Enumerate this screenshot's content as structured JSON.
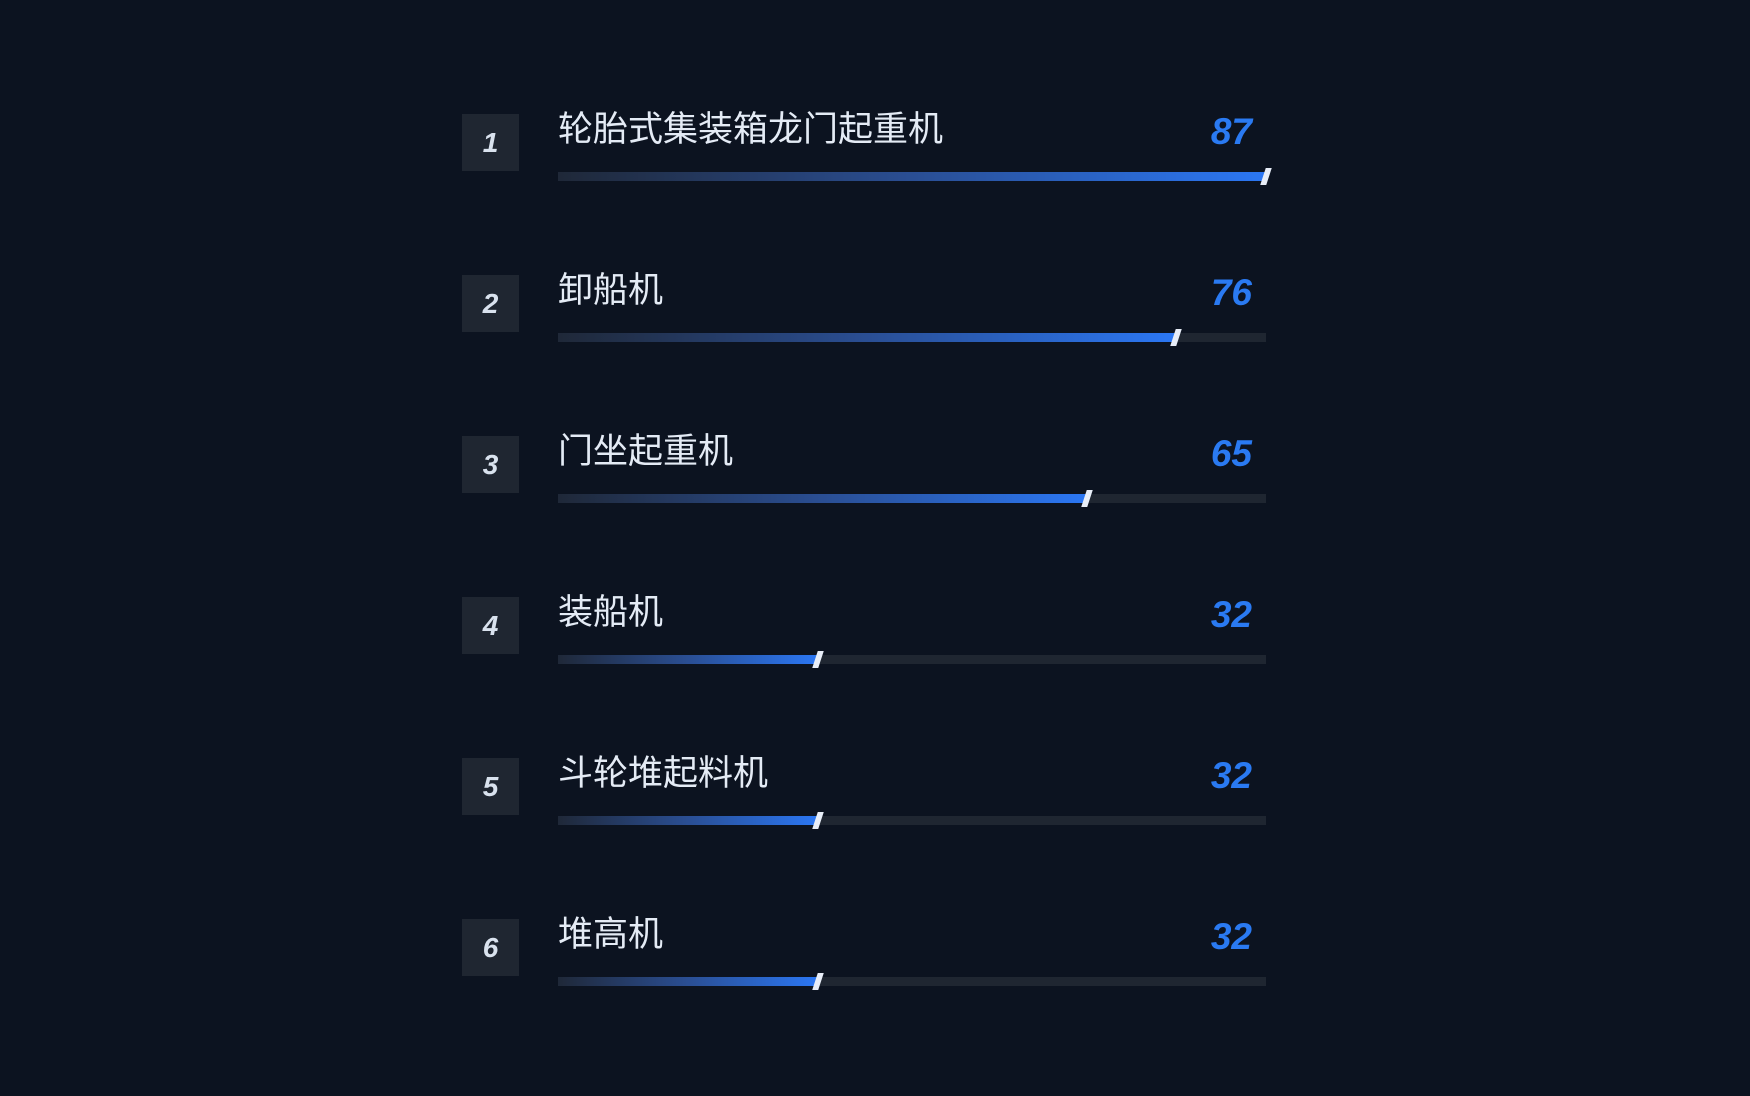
{
  "chart_data": {
    "type": "bar",
    "orientation": "horizontal",
    "categories": [
      "轮胎式集装箱龙门起重机",
      "卸船机",
      "门坐起重机",
      "装船机",
      "斗轮堆起料机",
      "堆高机"
    ],
    "values": [
      87,
      76,
      65,
      32,
      32,
      32
    ],
    "ranks": [
      "1",
      "2",
      "3",
      "4",
      "5",
      "6"
    ],
    "value_labels": [
      "87",
      "76",
      "65",
      "32",
      "32",
      "32"
    ],
    "xlim": [
      0,
      87
    ],
    "grid": false,
    "colors": {
      "bar": "#2b77f4",
      "track": "#1f2631",
      "value": "#2a7af2",
      "background": "#0c1320"
    }
  }
}
